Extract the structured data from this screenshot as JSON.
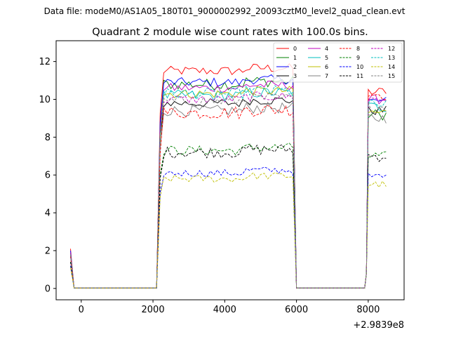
{
  "suptitle": "Data file: modeM0/AS1A05_180T01_9000002992_20093cztM0_level2_quad_clean.evt",
  "chart_data": {
    "type": "line",
    "title": "Quadrant 2 module wise count rates with 100.0s bins.",
    "xlabel": "",
    "ylabel": "",
    "x_offset_label": "+2.9839e8",
    "xlim": [
      -700,
      9000
    ],
    "ylim": [
      -0.6,
      13.1
    ],
    "xticks": [
      0,
      2000,
      4000,
      6000,
      8000
    ],
    "xtick_labels": [
      "0",
      "2000",
      "4000",
      "6000",
      "8000"
    ],
    "yticks": [
      0,
      2,
      4,
      6,
      8,
      10,
      12
    ],
    "ytick_labels": [
      "0",
      "2",
      "4",
      "6",
      "8",
      "10",
      "12"
    ],
    "grid": false,
    "legend_placement": "top-right",
    "segments": [
      {
        "start": -300,
        "end": -200,
        "kind": "decay"
      },
      {
        "start": 2100,
        "end": 5900,
        "kind": "plateau"
      },
      {
        "start": 7900,
        "end": 8500,
        "kind": "plateau"
      }
    ],
    "series": [
      {
        "name": "0",
        "color": "#ff0000",
        "dash": false,
        "level": 11.5,
        "seg3": 10.4,
        "spread": 0.25,
        "start": 2.1
      },
      {
        "name": "1",
        "color": "#008000",
        "dash": false,
        "level": 10.8,
        "seg3": 9.2,
        "spread": 0.3,
        "start": 1.9
      },
      {
        "name": "2",
        "color": "#0000ff",
        "dash": false,
        "level": 10.9,
        "seg3": 9.9,
        "spread": 0.25,
        "start": 2.0
      },
      {
        "name": "3",
        "color": "#000000",
        "dash": false,
        "level": 9.8,
        "seg3": 9.4,
        "spread": 0.25,
        "start": 1.8
      },
      {
        "name": "4",
        "color": "#bf00bf",
        "dash": false,
        "level": 10.6,
        "seg3": 10.0,
        "spread": 0.25,
        "start": 1.9
      },
      {
        "name": "5",
        "color": "#00bfbf",
        "dash": false,
        "level": 10.2,
        "seg3": 9.6,
        "spread": 0.3,
        "start": 1.8
      },
      {
        "name": "6",
        "color": "#bfbf00",
        "dash": false,
        "level": 10.3,
        "seg3": 9.3,
        "spread": 0.25,
        "start": 1.8
      },
      {
        "name": "7",
        "color": "#808080",
        "dash": false,
        "level": 9.4,
        "seg3": 9.0,
        "spread": 0.3,
        "start": 1.7
      },
      {
        "name": "8",
        "color": "#ff0000",
        "dash": true,
        "level": 9.3,
        "seg3": 10.3,
        "spread": 0.35,
        "start": 1.7
      },
      {
        "name": "9",
        "color": "#008000",
        "dash": true,
        "level": 7.3,
        "seg3": 7.0,
        "spread": 0.25,
        "start": 1.4
      },
      {
        "name": "10",
        "color": "#0000ff",
        "dash": true,
        "level": 6.1,
        "seg3": 5.9,
        "spread": 0.2,
        "start": 1.2
      },
      {
        "name": "11",
        "color": "#000000",
        "dash": true,
        "level": 7.2,
        "seg3": 7.0,
        "spread": 0.3,
        "start": 1.4
      },
      {
        "name": "12",
        "color": "#bf00bf",
        "dash": true,
        "level": 10.0,
        "seg3": 10.0,
        "spread": 0.25,
        "start": 1.8
      },
      {
        "name": "13",
        "color": "#00bfbf",
        "dash": true,
        "level": 10.3,
        "seg3": 9.7,
        "spread": 0.3,
        "start": 1.8
      },
      {
        "name": "14",
        "color": "#bfbf00",
        "dash": true,
        "level": 5.8,
        "seg3": 5.5,
        "spread": 0.2,
        "start": 1.1
      },
      {
        "name": "15",
        "color": "#808080",
        "dash": true,
        "level": 9.9,
        "seg3": 9.6,
        "spread": 0.3,
        "start": 1.8
      }
    ]
  }
}
